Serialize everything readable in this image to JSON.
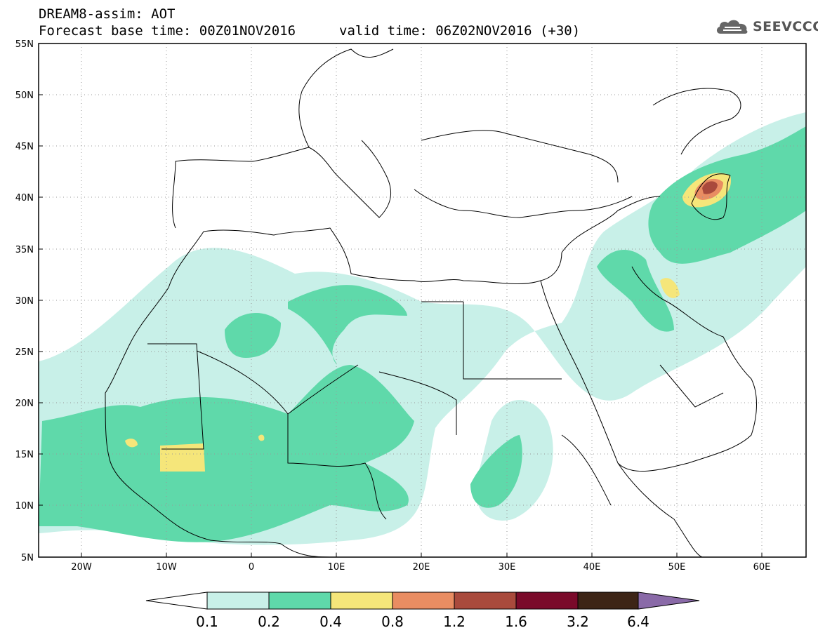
{
  "header": {
    "title": "DREAM8-assim: AOT",
    "base_time": "Forecast base time: 00Z01NOV2016",
    "valid_time": "valid time: 06Z02NOV2016 (+30)"
  },
  "logo": {
    "text": "SEEVCCC",
    "icon": "cloud-icon"
  },
  "axes": {
    "lat_ticks": [
      "55N",
      "50N",
      "45N",
      "40N",
      "35N",
      "30N",
      "25N",
      "20N",
      "15N",
      "10N",
      "5N"
    ],
    "lon_ticks": [
      "20W",
      "10W",
      "0",
      "10E",
      "20E",
      "30E",
      "40E",
      "50E",
      "60E"
    ]
  },
  "colorbar": {
    "labels": [
      "0.1",
      "0.2",
      "0.4",
      "0.8",
      "1.2",
      "1.6",
      "3.2",
      "6.4"
    ],
    "colors": [
      "#ffffff",
      "#c8f0e8",
      "#5fd9aa",
      "#f5e67a",
      "#e98d62",
      "#a94a3c",
      "#7a0a2a",
      "#3d2516",
      "#8a6aa8"
    ]
  }
}
